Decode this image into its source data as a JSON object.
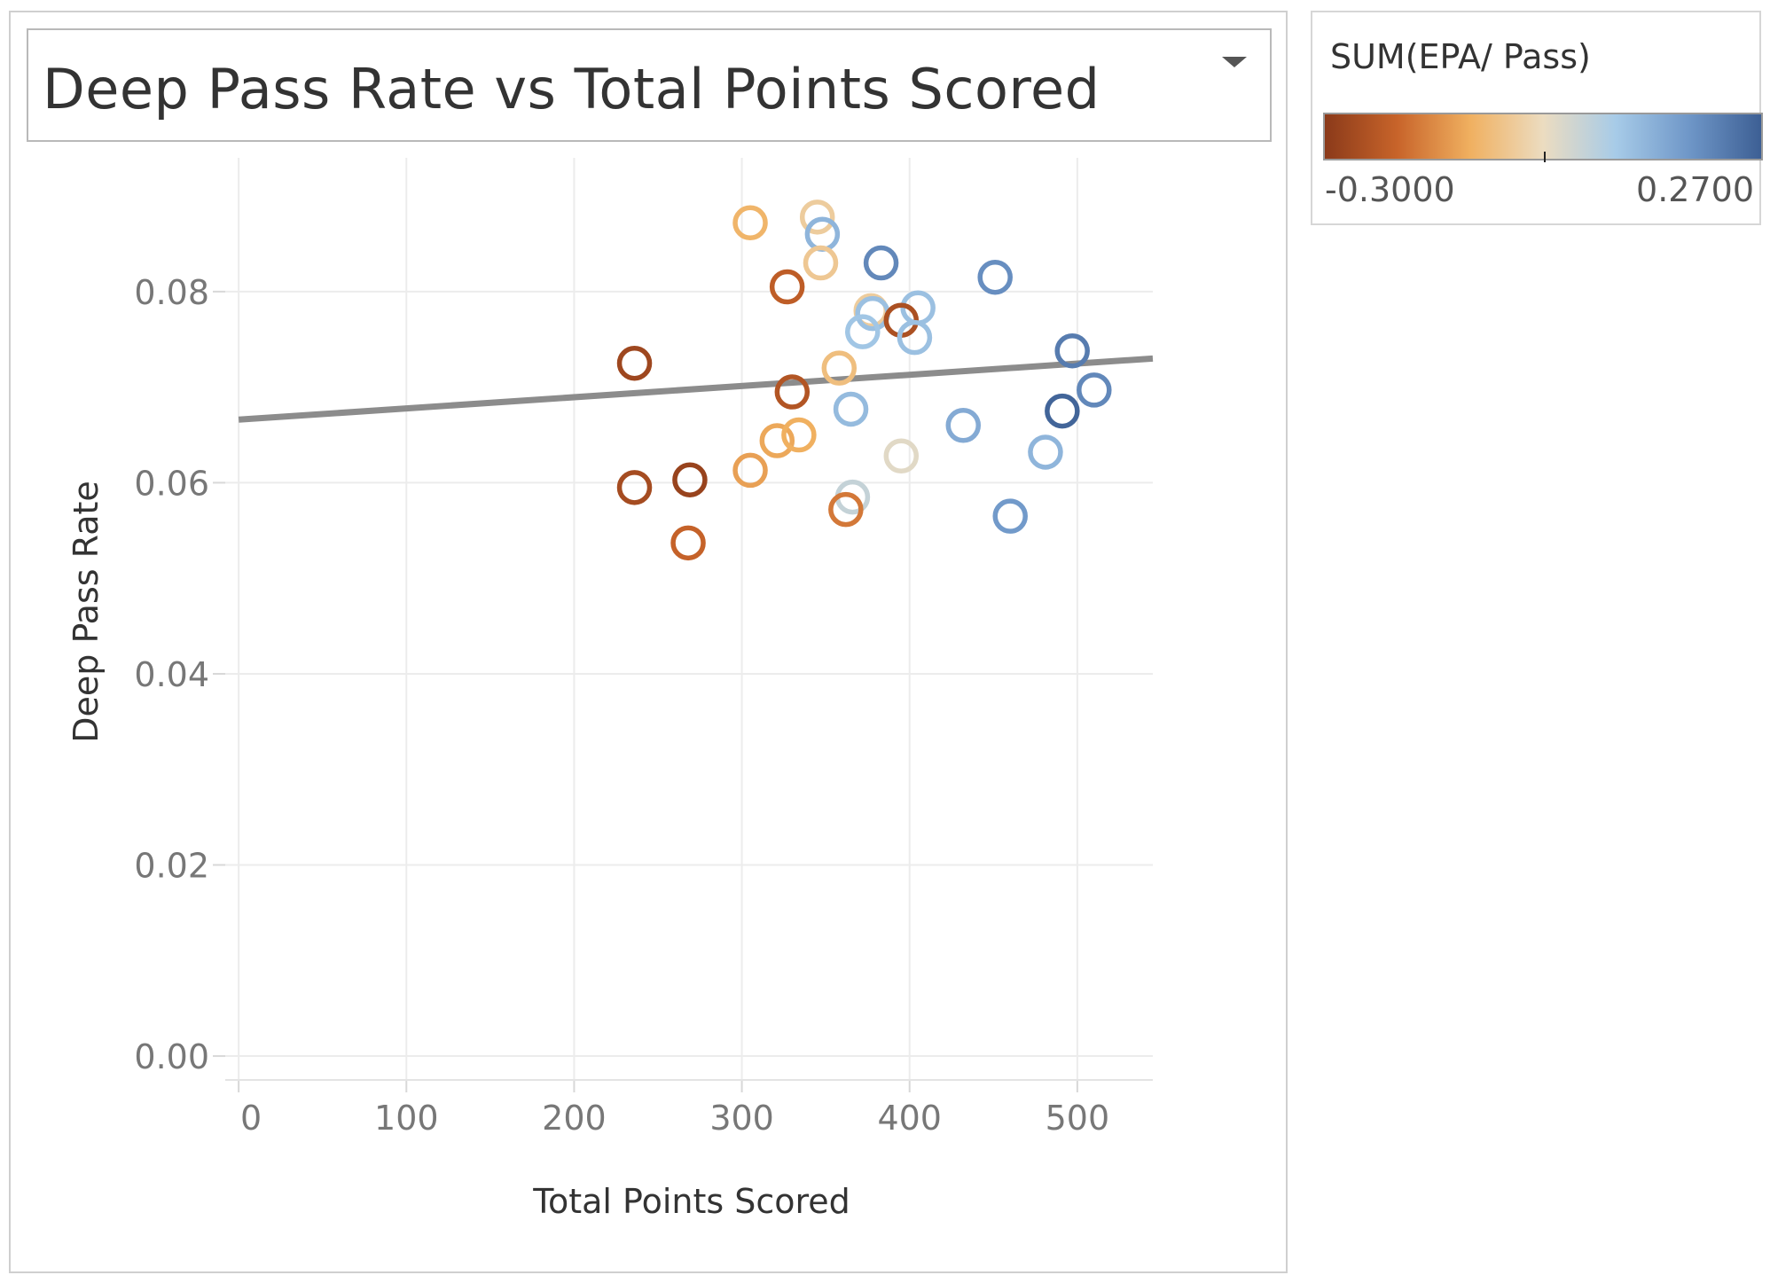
{
  "chart_data": {
    "type": "scatter",
    "title": "Deep Pass Rate vs Total Points Scored",
    "xlabel": "Total Points Scored",
    "ylabel": "Deep Pass Rate",
    "xlim": [
      -8,
      545
    ],
    "ylim": [
      -0.0025,
      0.094
    ],
    "x_ticks": [
      0,
      100,
      200,
      300,
      400,
      500
    ],
    "x_tick_labels": [
      "0",
      "100",
      "200",
      "300",
      "400",
      "500"
    ],
    "y_ticks": [
      0.0,
      0.02,
      0.04,
      0.06,
      0.08
    ],
    "y_tick_labels": [
      "0.00",
      "0.02",
      "0.04",
      "0.06",
      "0.08"
    ],
    "grid": true,
    "trend_line": {
      "x": [
        0,
        545
      ],
      "y": [
        0.0666,
        0.073
      ]
    },
    "color_legend": {
      "title": "SUM(EPA/ Pass)",
      "min_label": "-0.3000",
      "max_label": "0.2700",
      "min": -0.3,
      "max": 0.27,
      "colors": [
        "#8b3a1a",
        "#c8642a",
        "#f0b060",
        "#ecdcc0",
        "#a7cbe8",
        "#6f97c8",
        "#3d5f94"
      ],
      "placement": "top-right"
    },
    "points": [
      {
        "x": 305,
        "y": 0.0872,
        "epa": -0.1
      },
      {
        "x": 345,
        "y": 0.0878,
        "epa": -0.05
      },
      {
        "x": 348,
        "y": 0.086,
        "epa": 0.12
      },
      {
        "x": 347,
        "y": 0.083,
        "epa": -0.06
      },
      {
        "x": 383,
        "y": 0.083,
        "epa": 0.2
      },
      {
        "x": 451,
        "y": 0.0815,
        "epa": 0.19
      },
      {
        "x": 327,
        "y": 0.0805,
        "epa": -0.22
      },
      {
        "x": 377,
        "y": 0.078,
        "epa": -0.05
      },
      {
        "x": 378,
        "y": 0.0777,
        "epa": 0.1
      },
      {
        "x": 405,
        "y": 0.0783,
        "epa": 0.1
      },
      {
        "x": 395,
        "y": 0.077,
        "epa": -0.25
      },
      {
        "x": 372,
        "y": 0.0758,
        "epa": 0.09
      },
      {
        "x": 403,
        "y": 0.0752,
        "epa": 0.1
      },
      {
        "x": 497,
        "y": 0.0738,
        "epa": 0.22
      },
      {
        "x": 236,
        "y": 0.0725,
        "epa": -0.27
      },
      {
        "x": 358,
        "y": 0.072,
        "epa": -0.08
      },
      {
        "x": 330,
        "y": 0.0695,
        "epa": -0.24
      },
      {
        "x": 510,
        "y": 0.0697,
        "epa": 0.2
      },
      {
        "x": 365,
        "y": 0.0677,
        "epa": 0.11
      },
      {
        "x": 491,
        "y": 0.0675,
        "epa": 0.26
      },
      {
        "x": 432,
        "y": 0.066,
        "epa": 0.14
      },
      {
        "x": 321,
        "y": 0.0644,
        "epa": -0.12
      },
      {
        "x": 334,
        "y": 0.065,
        "epa": -0.11
      },
      {
        "x": 395,
        "y": 0.0628,
        "epa": 0.0
      },
      {
        "x": 481,
        "y": 0.0632,
        "epa": 0.12
      },
      {
        "x": 305,
        "y": 0.0613,
        "epa": -0.13
      },
      {
        "x": 236,
        "y": 0.0595,
        "epa": -0.26
      },
      {
        "x": 269,
        "y": 0.0603,
        "epa": -0.28
      },
      {
        "x": 366,
        "y": 0.0585,
        "epa": 0.04
      },
      {
        "x": 362,
        "y": 0.0572,
        "epa": -0.18
      },
      {
        "x": 460,
        "y": 0.0565,
        "epa": 0.17
      },
      {
        "x": 268,
        "y": 0.0537,
        "epa": -0.21
      }
    ]
  }
}
